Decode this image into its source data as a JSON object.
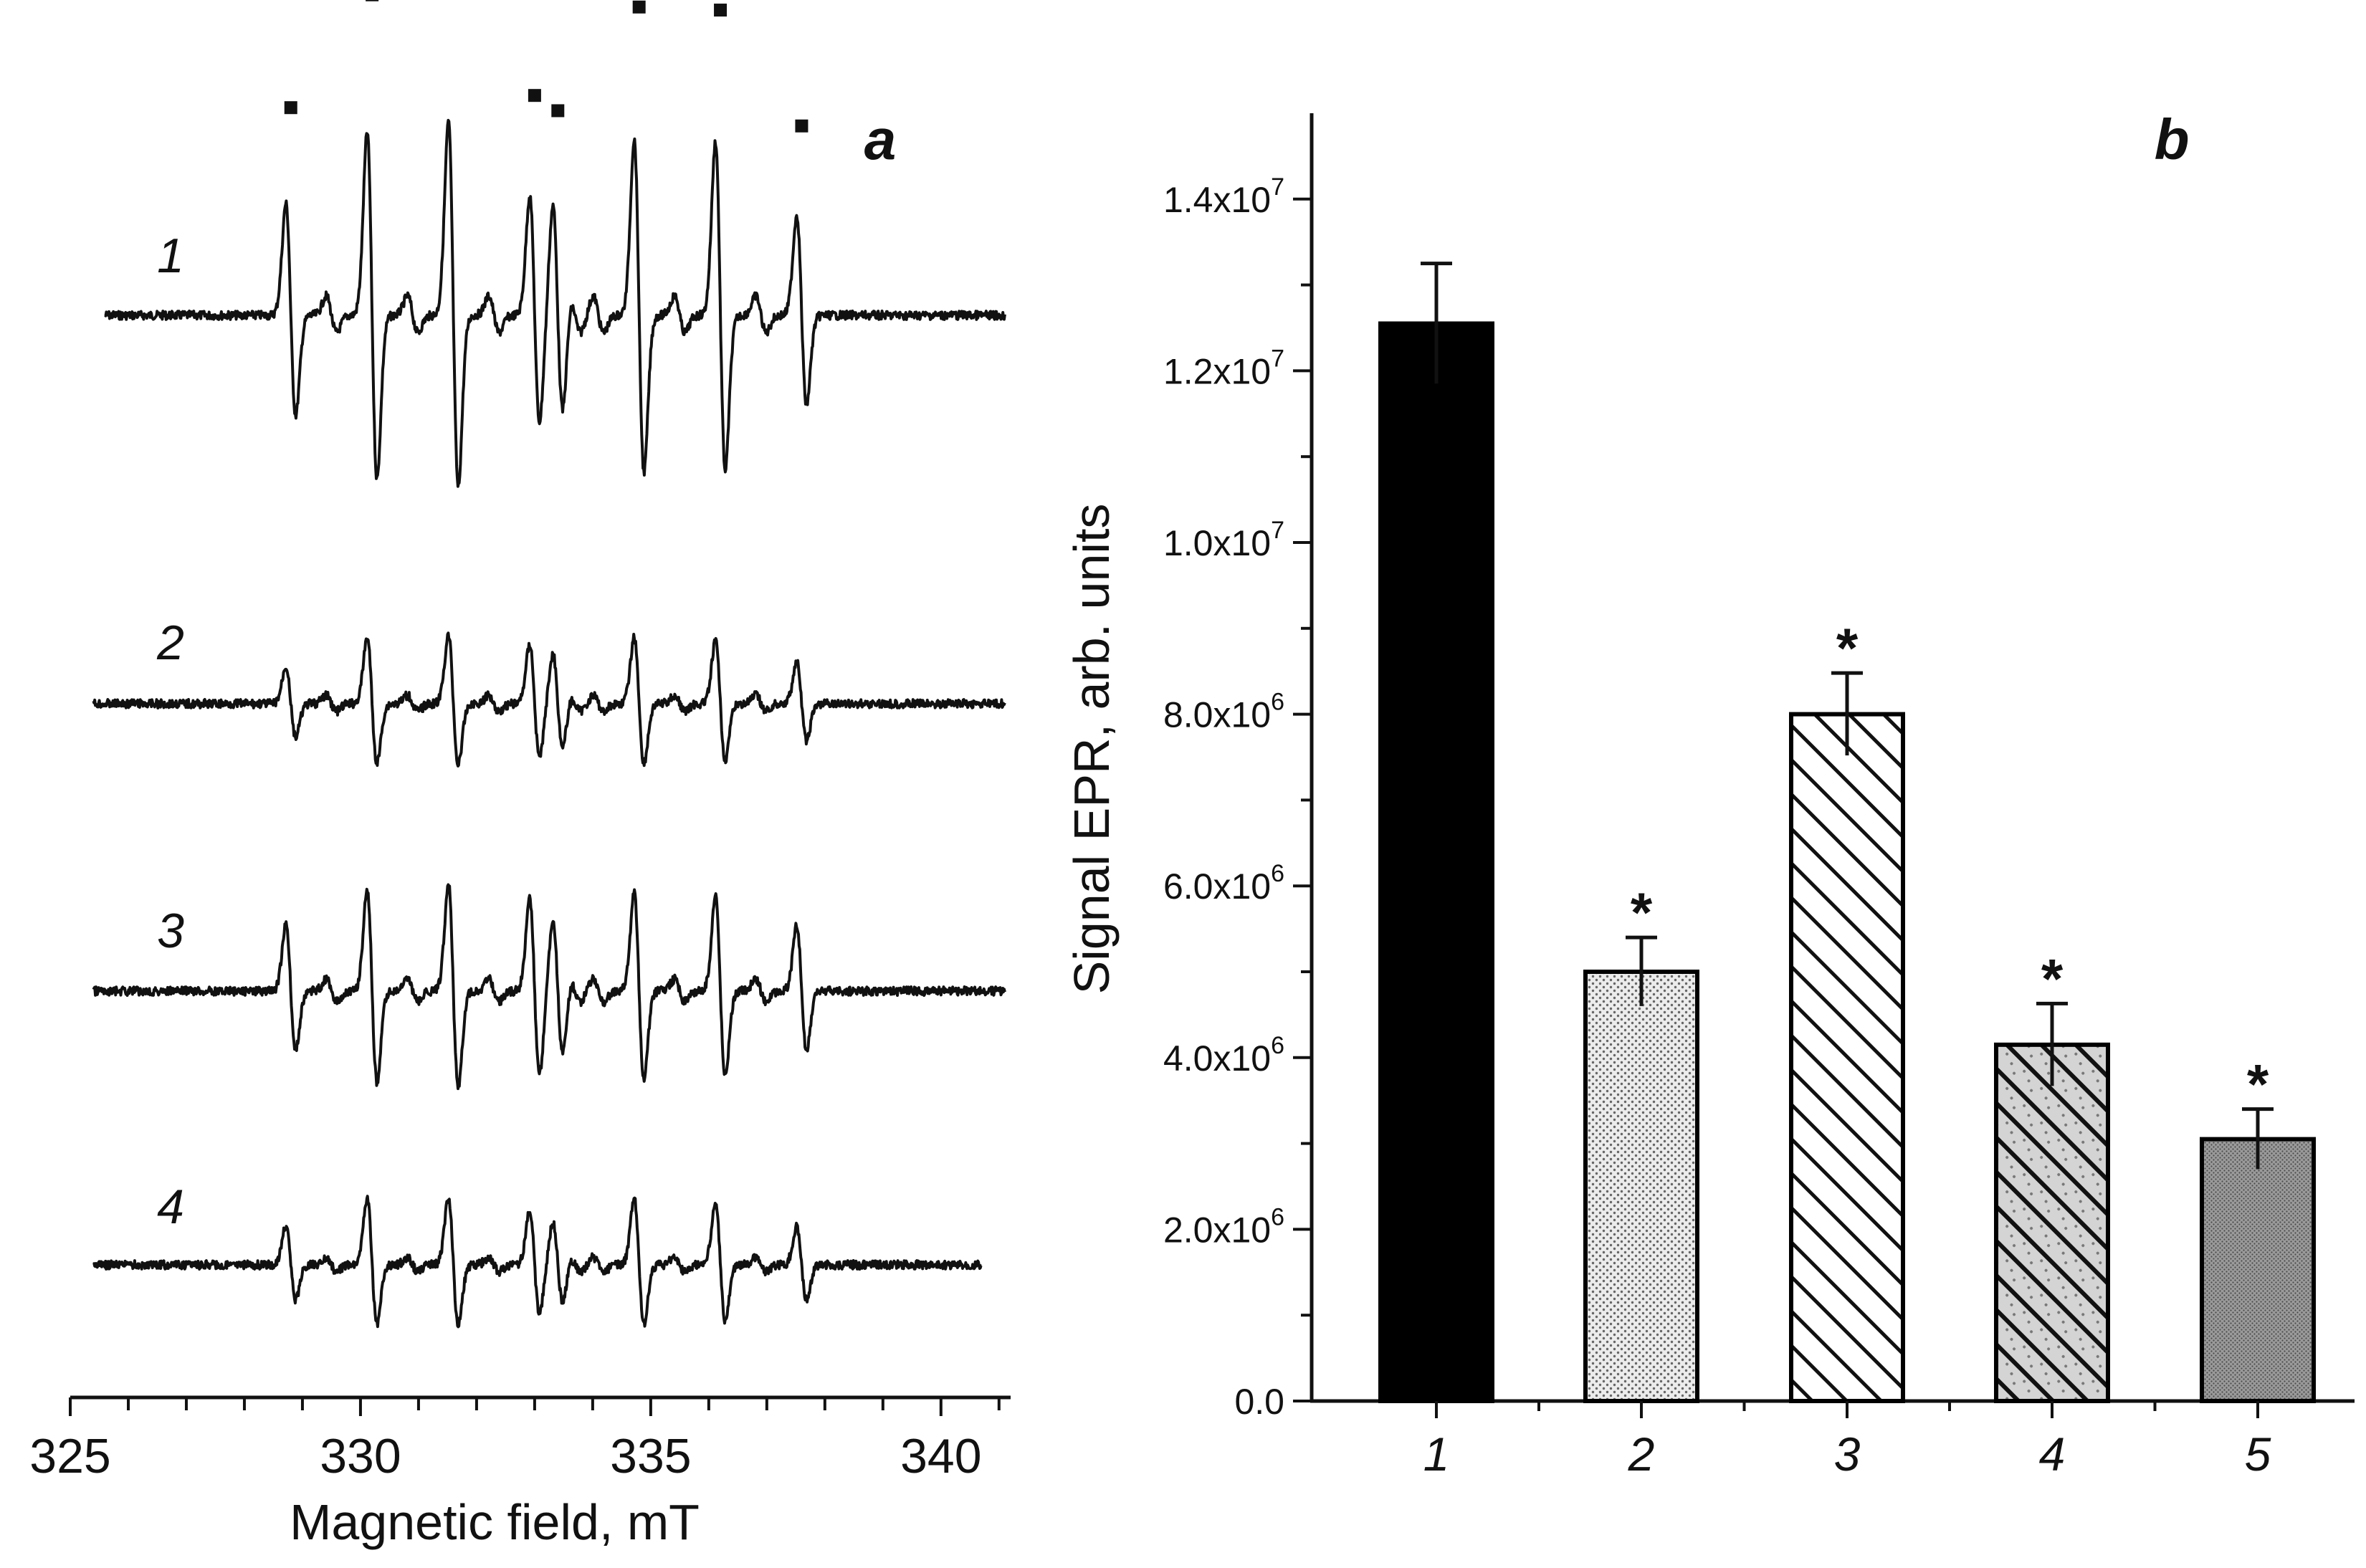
{
  "chart_data": [
    {
      "panel": "a",
      "type": "line",
      "panel_label": "a",
      "xlabel": "Magnetic field, mT",
      "ylabel": "",
      "xlim": [
        325,
        341.2
      ],
      "xticks": [
        325,
        330,
        335,
        340
      ],
      "xtick_labels": [
        "325",
        "330",
        "335",
        "340"
      ],
      "grid": false,
      "peak_positions_mT": [
        328.8,
        330.2,
        331.6,
        333.0,
        333.4,
        334.8,
        336.2,
        337.6
      ],
      "series": [
        {
          "name": "1",
          "x_start": 325.6,
          "x_end": 341.1,
          "rel_amplitude": 1.0,
          "peak_heights": [
            0.58,
            0.95,
            1.0,
            0.62,
            0.57,
            0.91,
            0.9,
            0.52
          ],
          "peak_markers": true
        },
        {
          "name": "2",
          "x_start": 325.4,
          "x_end": 341.1,
          "rel_amplitude": 0.43,
          "peak_heights": [
            0.45,
            0.8,
            0.82,
            0.72,
            0.6,
            0.8,
            0.75,
            0.5
          ],
          "peak_markers": false
        },
        {
          "name": "3",
          "x_start": 325.4,
          "x_end": 341.1,
          "rel_amplitude": 0.62,
          "peak_heights": [
            0.55,
            0.85,
            0.9,
            0.78,
            0.6,
            0.82,
            0.8,
            0.55
          ],
          "peak_markers": false
        },
        {
          "name": "4",
          "x_start": 325.4,
          "x_end": 340.7,
          "rel_amplitude": 0.4,
          "peak_heights": [
            0.5,
            0.85,
            0.88,
            0.7,
            0.55,
            0.85,
            0.8,
            0.5
          ],
          "peak_markers": false
        }
      ]
    },
    {
      "panel": "b",
      "type": "bar",
      "panel_label": "b",
      "xlabel": "",
      "ylabel": "Signal EPR, arb. units",
      "ylim": [
        0,
        15000000
      ],
      "categories": [
        "1",
        "2",
        "3",
        "4",
        "5"
      ],
      "values": [
        12550000,
        5000000,
        8000000,
        4150000,
        3050000
      ],
      "errors": [
        700000,
        400000,
        480000,
        480000,
        350000
      ],
      "significance": [
        "",
        "*",
        "*",
        "*",
        "*"
      ],
      "fills": [
        "solid-black",
        "fine-dots",
        "diagonal-hatch",
        "diagonal-hatch-dots",
        "dense-grey"
      ],
      "yticks": [
        {
          "value": 0,
          "mant": "0.0",
          "exp": ""
        },
        {
          "value": 2000000,
          "mant": "2.0x10",
          "exp": "6"
        },
        {
          "value": 4000000,
          "mant": "4.0x10",
          "exp": "6"
        },
        {
          "value": 6000000,
          "mant": "6.0x10",
          "exp": "6"
        },
        {
          "value": 8000000,
          "mant": "8.0x10",
          "exp": "6"
        },
        {
          "value": 10000000,
          "mant": "1.0x10",
          "exp": "7"
        },
        {
          "value": 12000000,
          "mant": "1.2x10",
          "exp": "7"
        },
        {
          "value": 14000000,
          "mant": "1.4x10",
          "exp": "7"
        }
      ],
      "grid": false
    }
  ]
}
